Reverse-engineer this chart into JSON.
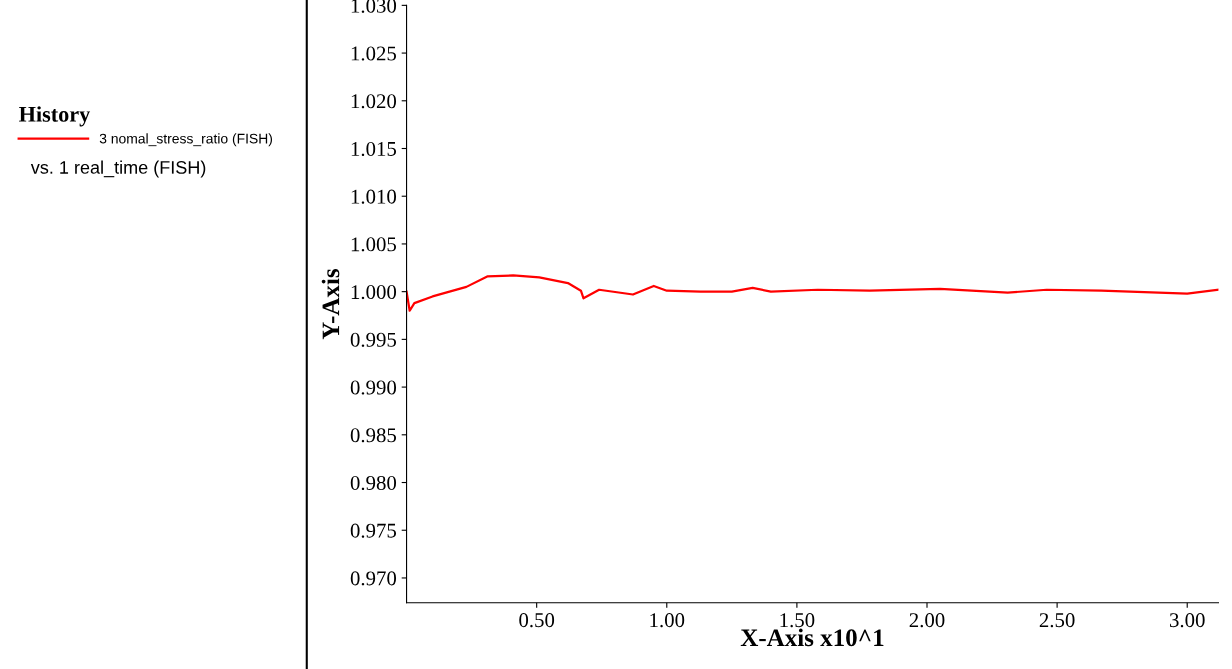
{
  "chart_data": {
    "type": "line",
    "xlabel": "X-Axis x10^1",
    "ylabel": "Y-Axis",
    "legend_title": "History",
    "legend": "left",
    "annotations": [
      "vs. 1 real_time (FISH)"
    ],
    "xlim": [
      0,
      3.12
    ],
    "ylim": [
      0.9674,
      1.03
    ],
    "xticks": [
      {
        "value": 0.5,
        "label": "0.50"
      },
      {
        "value": 1.0,
        "label": "1.00"
      },
      {
        "value": 1.5,
        "label": "1.50"
      },
      {
        "value": 2.0,
        "label": "2.00"
      },
      {
        "value": 2.5,
        "label": "2.50"
      },
      {
        "value": 3.0,
        "label": "3.00"
      }
    ],
    "yticks": [
      {
        "value": 0.97,
        "label": "0.970"
      },
      {
        "value": 0.975,
        "label": "0.975"
      },
      {
        "value": 0.98,
        "label": "0.980"
      },
      {
        "value": 0.985,
        "label": "0.985"
      },
      {
        "value": 0.99,
        "label": "0.990"
      },
      {
        "value": 0.995,
        "label": "0.995"
      },
      {
        "value": 1.0,
        "label": "1.000"
      },
      {
        "value": 1.005,
        "label": "1.005"
      },
      {
        "value": 1.01,
        "label": "1.010"
      },
      {
        "value": 1.015,
        "label": "1.015"
      },
      {
        "value": 1.02,
        "label": "1.020"
      },
      {
        "value": 1.025,
        "label": "1.025"
      },
      {
        "value": 1.03,
        "label": "1.030"
      }
    ],
    "grid": false,
    "series": [
      {
        "name": "3 nomal_stress_ratio (FISH)",
        "color": "#ff0000",
        "x": [
          0,
          0.012,
          0.03,
          0.1,
          0.23,
          0.31,
          0.41,
          0.51,
          0.62,
          0.67,
          0.68,
          0.74,
          0.87,
          0.95,
          1.0,
          1.13,
          1.25,
          1.33,
          1.4,
          1.58,
          1.78,
          2.05,
          2.31,
          2.46,
          2.67,
          3.0,
          3.12
        ],
        "values": [
          1.0,
          0.998,
          0.9988,
          0.9995,
          1.0005,
          1.0016,
          1.0017,
          1.0015,
          1.0009,
          1.0001,
          0.9993,
          1.0002,
          0.9997,
          1.0006,
          1.0001,
          1.0,
          1.0,
          1.0004,
          1.0,
          1.0002,
          1.0001,
          1.0003,
          0.9999,
          1.0002,
          1.0001,
          0.9998,
          1.0002
        ]
      }
    ]
  }
}
